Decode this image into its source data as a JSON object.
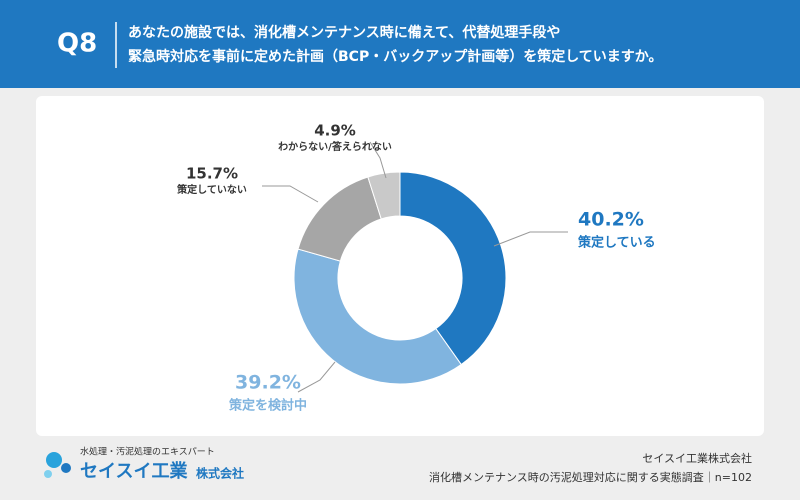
{
  "header": {
    "badge": "Q8",
    "question_lines": [
      "あなたの施設では、消化槽メンテナンス時に備えて、代替処理手段や",
      "緊急時対応を事前に定めた計画（BCP・バックアップ計画等）を策定していますか。"
    ]
  },
  "chart_data": {
    "type": "pie",
    "donut": true,
    "categories": [
      "策定している",
      "策定を検討中",
      "策定していない",
      "わからない/答えられない"
    ],
    "values": [
      40.2,
      39.2,
      15.7,
      4.9
    ],
    "value_labels": [
      "40.2%",
      "39.2%",
      "15.7%",
      "4.9%"
    ],
    "colors": [
      "#1f78c1",
      "#80b4df",
      "#a6a6a6",
      "#c9c9c9"
    ],
    "label_colors": [
      "#1f78c1",
      "#80b4df",
      "#333333",
      "#333333"
    ]
  },
  "footer": {
    "tagline": "水処理・汚泥処理のエキスパート",
    "brand": "セイスイ工業",
    "brand_suffix": "株式会社",
    "source_lines": [
      "セイスイ工業株式会社",
      "消化槽メンテナンス時の汚泥処理対応に関する実態調査｜n=102"
    ]
  }
}
